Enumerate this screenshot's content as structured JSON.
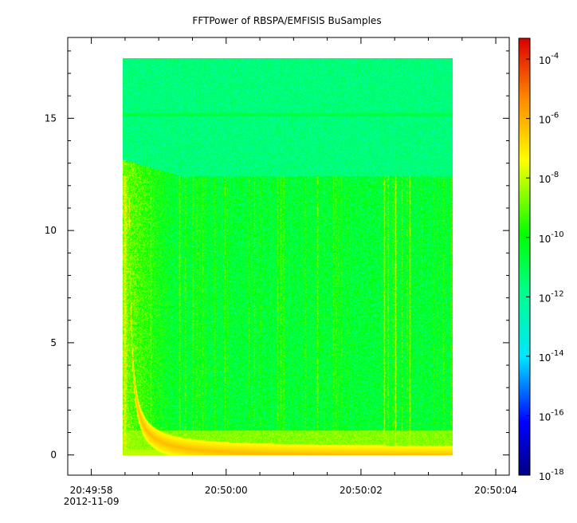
{
  "chart_data": {
    "type": "heatmap",
    "title": "FFTPower of RBSPA/EMFISIS  BuSamples",
    "xlabel": "",
    "ylabel": "",
    "x_ticks": [
      {
        "label": "20:49:58",
        "sublabel": "2012-11-09",
        "value": 0
      },
      {
        "label": "20:50:00",
        "value": 2
      },
      {
        "label": "20:50:02",
        "value": 4
      },
      {
        "label": "20:50:04",
        "value": 6
      }
    ],
    "x_minor_step": 0.5,
    "xlim": [
      -0.35,
      6.2
    ],
    "x_data_range": [
      0.5,
      5.5
    ],
    "y_ticks": [
      0,
      5,
      10,
      15
    ],
    "ylim": [
      -0.9,
      18.6
    ],
    "y_data_range": [
      0,
      17.5
    ],
    "colorbar": {
      "scale": "log",
      "range": [
        -18,
        -3.3
      ],
      "ticks": [
        {
          "base": "10",
          "exp": "-4",
          "value": -4
        },
        {
          "base": "10",
          "exp": "-6",
          "value": -6
        },
        {
          "base": "10",
          "exp": "-8",
          "value": -8
        },
        {
          "base": "10",
          "exp": "-10",
          "value": -10
        },
        {
          "base": "10",
          "exp": "-12",
          "value": -12
        },
        {
          "base": "10",
          "exp": "-14",
          "value": -14
        },
        {
          "base": "10",
          "exp": "-16",
          "value": -16
        },
        {
          "base": "10",
          "exp": "-18",
          "value": -18
        }
      ]
    },
    "features": {
      "background_log_power": -10.6,
      "upper_band_log_power": -11.6,
      "upper_band_cutoff_y": 12.3,
      "line_15_log_power": -10.8,
      "whistler_start_x": 0.6,
      "whistler_peak_log_power": -6.2,
      "low_freq_band_max_y": 1.1,
      "low_freq_band_log_power": -8.6
    }
  }
}
